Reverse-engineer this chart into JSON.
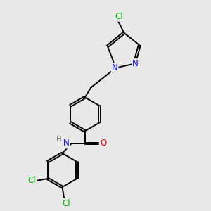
{
  "background_color": "#e8e8e8",
  "bond_color": "#000000",
  "atom_colors": {
    "N": "#0000ff",
    "O": "#ff0000",
    "Cl": "#00bb00",
    "H": "#888888",
    "C": "#000000"
  },
  "figsize": [
    3.0,
    3.0
  ],
  "dpi": 100
}
